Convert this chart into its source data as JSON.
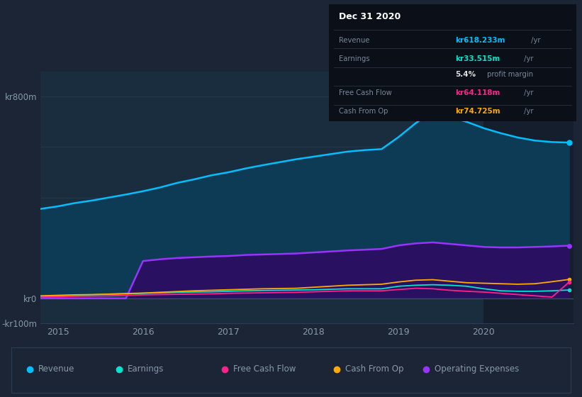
{
  "background_color": "#1c2535",
  "plot_bg_color": "#1a2d3f",
  "fig_width": 8.21,
  "fig_height": 5.6,
  "dpi": 100,
  "years": [
    2014.8,
    2015.0,
    2015.2,
    2015.4,
    2015.6,
    2015.8,
    2016.0,
    2016.2,
    2016.4,
    2016.6,
    2016.8,
    2017.0,
    2017.2,
    2017.4,
    2017.6,
    2017.8,
    2018.0,
    2018.2,
    2018.4,
    2018.6,
    2018.8,
    2019.0,
    2019.2,
    2019.4,
    2019.6,
    2019.8,
    2020.0,
    2020.2,
    2020.4,
    2020.6,
    2020.8,
    2021.0
  ],
  "revenue": [
    355,
    365,
    378,
    388,
    400,
    412,
    425,
    440,
    458,
    472,
    488,
    500,
    515,
    528,
    540,
    552,
    562,
    572,
    582,
    588,
    592,
    640,
    695,
    740,
    720,
    700,
    675,
    655,
    638,
    626,
    620,
    618
  ],
  "operating_expenses": [
    0,
    0,
    0,
    0,
    0,
    0,
    148,
    155,
    160,
    163,
    166,
    168,
    172,
    174,
    176,
    178,
    182,
    186,
    190,
    193,
    196,
    210,
    218,
    222,
    216,
    210,
    204,
    202,
    202,
    204,
    206,
    209
  ],
  "earnings": [
    8,
    10,
    12,
    14,
    16,
    18,
    20,
    22,
    24,
    25,
    26,
    28,
    30,
    31,
    32,
    33,
    34,
    36,
    38,
    38,
    38,
    48,
    52,
    54,
    52,
    48,
    38,
    30,
    28,
    28,
    30,
    33
  ],
  "free_cash_flow": [
    5,
    6,
    8,
    9,
    10,
    12,
    14,
    15,
    16,
    17,
    18,
    20,
    21,
    22,
    23,
    24,
    26,
    28,
    30,
    30,
    30,
    35,
    40,
    38,
    32,
    28,
    25,
    20,
    15,
    10,
    5,
    64
  ],
  "cash_from_op": [
    10,
    12,
    14,
    15,
    17,
    19,
    21,
    24,
    27,
    30,
    32,
    34,
    36,
    38,
    39,
    40,
    44,
    48,
    52,
    54,
    56,
    65,
    72,
    74,
    68,
    62,
    60,
    58,
    56,
    58,
    66,
    75
  ],
  "revenue_color": "#00bfff",
  "revenue_fill": "#0d3a55",
  "operating_expenses_color": "#9933ff",
  "operating_expenses_fill": "#2a1060",
  "earnings_color": "#00e5cc",
  "free_cash_flow_color": "#ff2288",
  "cash_from_op_color": "#ffaa00",
  "ylim": [
    -100,
    900
  ],
  "xlim": [
    2014.8,
    2021.05
  ],
  "yticks": [
    -100,
    0,
    800
  ],
  "ytick_labels": [
    "-kr100m",
    "kr0",
    "kr800m"
  ],
  "xticks": [
    2015,
    2016,
    2017,
    2018,
    2019,
    2020
  ],
  "xtick_labels": [
    "2015",
    "2016",
    "2017",
    "2018",
    "2019",
    "2020"
  ],
  "infobox_title": "Dec 31 2020",
  "legend_items": [
    {
      "label": "Revenue",
      "color": "#00bfff"
    },
    {
      "label": "Earnings",
      "color": "#00e5cc"
    },
    {
      "label": "Free Cash Flow",
      "color": "#ff2288"
    },
    {
      "label": "Cash From Op",
      "color": "#ffaa00"
    },
    {
      "label": "Operating Expenses",
      "color": "#9933ff"
    }
  ],
  "text_color": "#8899aa",
  "grid_color": "#2a3d52",
  "shaded_region_x1": 2020.0,
  "shaded_region_x2": 2021.05,
  "shaded_region_color": "#141e2c"
}
